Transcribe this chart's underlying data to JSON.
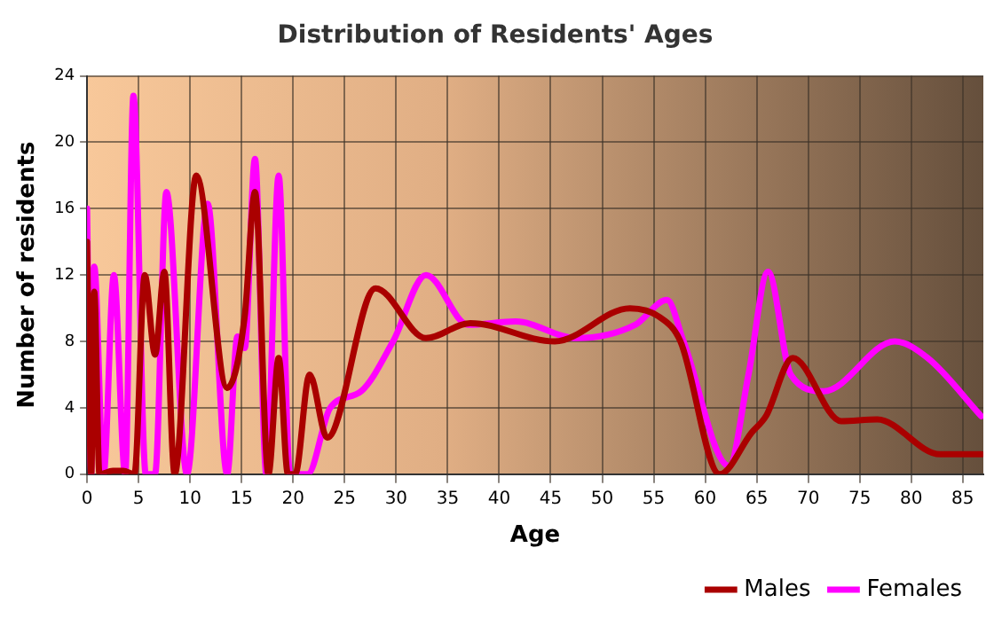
{
  "chart_data": {
    "type": "line",
    "title": "Distribution of Residents' Ages",
    "xlabel": "Age",
    "ylabel": "Number of residents",
    "xlim": [
      0,
      87
    ],
    "xticks": [
      0,
      5,
      10,
      15,
      20,
      25,
      30,
      35,
      40,
      45,
      50,
      55,
      60,
      65,
      70,
      75,
      80,
      85
    ],
    "ylim": [
      0,
      24
    ],
    "yticks": [
      0,
      4,
      8,
      12,
      16,
      20,
      24
    ],
    "grid": true,
    "legend": "bottom right",
    "marker": "none",
    "line_style": "solid",
    "series": [
      {
        "name": "Males",
        "color": "#aa0000",
        "x": [
          0,
          0.4,
          0.7,
          1.2,
          2.5,
          3.5,
          4.6,
          5.6,
          6.6,
          7.5,
          8.5,
          10.6,
          13.6,
          15.3,
          16.3,
          17.6,
          18.6,
          19.5,
          20.2,
          21.6,
          23.3,
          28,
          32.9,
          37.2,
          45.4,
          52.7,
          55.5,
          57.6,
          61.4,
          64.5,
          65.9,
          68.5,
          73.2,
          76.7,
          82.8,
          86.8
        ],
        "values": [
          14,
          0,
          11,
          0,
          0.2,
          0.2,
          0,
          12,
          7.2,
          12.2,
          0,
          18,
          5.2,
          9.5,
          17,
          0,
          7,
          0,
          0,
          6,
          2.2,
          11.2,
          8.2,
          9.1,
          8,
          10,
          9.5,
          8,
          0,
          2.5,
          3.5,
          7,
          3.2,
          3.3,
          1.2,
          1.2
        ]
      },
      {
        "name": "Females",
        "color": "#ff00ff",
        "x": [
          0,
          0.4,
          0.7,
          1.6,
          2.6,
          3.7,
          4.5,
          5.7,
          6.6,
          7.7,
          9.7,
          11.7,
          13.6,
          14.6,
          15.3,
          16.3,
          17.4,
          18.6,
          19.7,
          21.4,
          23.6,
          26.6,
          29.7,
          32.9,
          37,
          41.6,
          47.5,
          53.2,
          56.3,
          57.9,
          62.3,
          64.2,
          66.1,
          68.3,
          71.5,
          78.4,
          81.6,
          86.8
        ],
        "values": [
          16,
          0,
          12.5,
          0,
          12,
          0,
          22.8,
          0,
          0,
          17,
          0,
          16.3,
          0,
          8.3,
          7.6,
          19,
          0,
          18,
          0,
          0,
          4,
          5,
          8,
          12,
          9,
          9.2,
          8.2,
          9,
          10.5,
          8,
          0.5,
          6,
          12.2,
          6,
          5,
          8,
          7,
          3.5
        ]
      }
    ]
  }
}
